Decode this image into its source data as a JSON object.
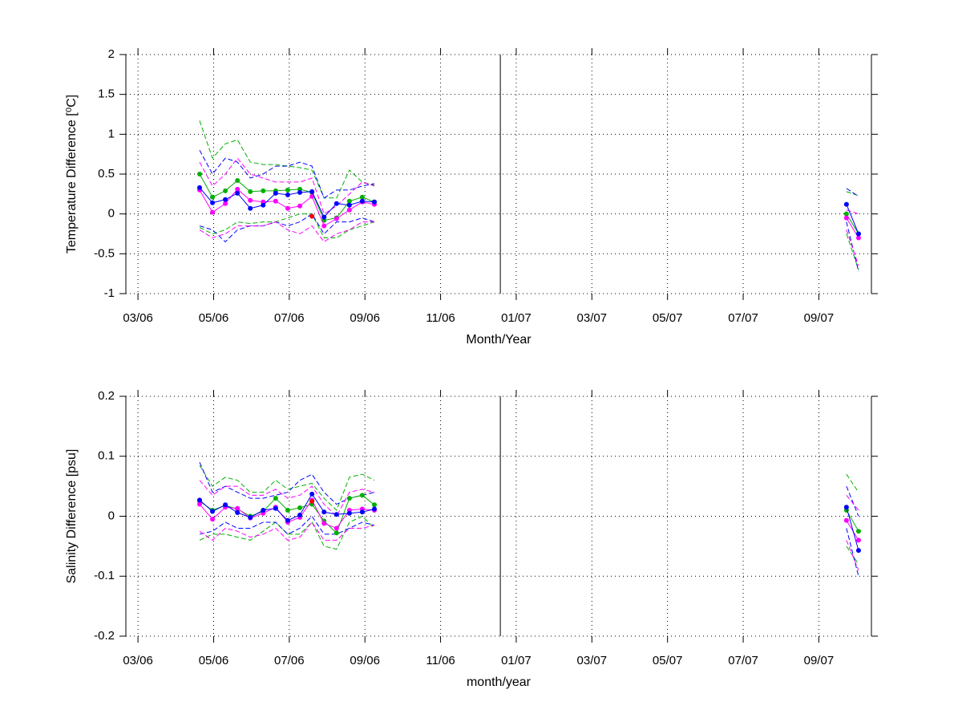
{
  "chart_data": [
    {
      "type": "line",
      "xlabel": "Month/Year",
      "ylabel": "Temperature Difference [⁰C]",
      "x": [
        4.63,
        4.97,
        5.31,
        5.63,
        5.97,
        6.31,
        6.64,
        6.96,
        7.28,
        7.6,
        7.92,
        8.25,
        8.59,
        8.93,
        9.25,
        null,
        21.73,
        22.05
      ],
      "xlim": [
        2.68,
        22.39
      ],
      "xticks": [
        {
          "value": 3,
          "label": "03/06"
        },
        {
          "value": 5,
          "label": "05/06"
        },
        {
          "value": 7,
          "label": "07/06"
        },
        {
          "value": 9,
          "label": "09/06"
        },
        {
          "value": 11,
          "label": "11/06"
        },
        {
          "value": 13,
          "label": "01/07"
        },
        {
          "value": 15,
          "label": "03/07"
        },
        {
          "value": 17,
          "label": "05/07"
        },
        {
          "value": 19,
          "label": "07/07"
        },
        {
          "value": 21,
          "label": "09/07"
        }
      ],
      "ylim": [
        -1,
        2
      ],
      "yticks": [
        -1,
        -0.5,
        0,
        0.5,
        1,
        1.5,
        2
      ],
      "grid": true,
      "vline": 12.58,
      "series": [
        {
          "color": "#00b000",
          "style": "dashed",
          "values": [
            1.17,
            0.7,
            0.88,
            0.93,
            0.65,
            0.62,
            0.62,
            0.6,
            0.58,
            0.55,
            0.2,
            0.2,
            0.55,
            0.4,
            0.36,
            null,
            0.28,
            0.23
          ]
        },
        {
          "color": "#00b000",
          "style": "dashed",
          "values": [
            -0.17,
            -0.25,
            -0.2,
            -0.1,
            -0.12,
            -0.1,
            -0.1,
            -0.05,
            0.0,
            0.0,
            -0.3,
            -0.3,
            -0.2,
            -0.15,
            -0.1,
            null,
            -0.25,
            -0.7
          ]
        },
        {
          "color": "#0000ff",
          "style": "dashed",
          "values": [
            0.8,
            0.5,
            0.7,
            0.65,
            0.45,
            0.5,
            0.6,
            0.6,
            0.65,
            0.6,
            0.2,
            0.3,
            0.3,
            0.35,
            0.38,
            null,
            0.32,
            0.22
          ]
        },
        {
          "color": "#0000ff",
          "style": "dashed",
          "values": [
            -0.15,
            -0.2,
            -0.35,
            -0.2,
            -0.15,
            -0.15,
            -0.1,
            -0.15,
            -0.1,
            0.0,
            -0.25,
            -0.1,
            -0.1,
            -0.05,
            -0.1,
            null,
            -0.1,
            -0.72
          ]
        },
        {
          "color": "#ff00ff",
          "style": "dashed",
          "values": [
            0.65,
            0.35,
            0.5,
            0.7,
            0.5,
            0.45,
            0.4,
            0.4,
            0.4,
            0.45,
            0.0,
            0.1,
            0.25,
            0.4,
            0.35,
            null,
            0.05,
            0.0
          ]
        },
        {
          "color": "#ff00ff",
          "style": "dashed",
          "values": [
            -0.2,
            -0.3,
            -0.25,
            -0.15,
            -0.15,
            -0.15,
            -0.1,
            -0.2,
            -0.25,
            -0.15,
            -0.35,
            -0.25,
            -0.2,
            -0.1,
            -0.1,
            null,
            -0.2,
            -0.65
          ]
        },
        {
          "color": "#00b000",
          "style": "solid",
          "values": [
            0.5,
            0.21,
            0.29,
            0.42,
            0.28,
            0.29,
            0.29,
            0.3,
            0.31,
            0.27,
            -0.08,
            -0.05,
            0.16,
            0.21,
            0.15,
            null,
            0.0,
            -0.25
          ]
        },
        {
          "color": "#ff00ff",
          "style": "solid",
          "values": [
            0.3,
            0.02,
            0.13,
            0.31,
            0.17,
            0.15,
            0.16,
            0.07,
            0.1,
            0.22,
            -0.15,
            -0.06,
            0.05,
            0.15,
            0.12,
            null,
            -0.05,
            -0.3
          ]
        },
        {
          "color": "#0000ff",
          "style": "solid",
          "values": [
            0.33,
            0.14,
            0.18,
            0.26,
            0.07,
            0.11,
            0.26,
            0.24,
            0.27,
            0.28,
            -0.04,
            0.13,
            0.11,
            0.16,
            0.15,
            null,
            0.12,
            -0.25
          ]
        },
        {
          "color": "#ff0000",
          "style": "markers",
          "values": [
            null,
            null,
            null,
            null,
            null,
            null,
            null,
            null,
            null,
            -0.03,
            null,
            null,
            null,
            null,
            null,
            null,
            null,
            null
          ]
        }
      ]
    },
    {
      "type": "line",
      "xlabel": "month/year",
      "ylabel": "Salinity Difference [psu]",
      "x": [
        4.63,
        4.97,
        5.31,
        5.63,
        5.97,
        6.31,
        6.64,
        6.96,
        7.28,
        7.6,
        7.92,
        8.25,
        8.59,
        8.93,
        9.25,
        null,
        21.73,
        22.05
      ],
      "xlim": [
        2.68,
        22.39
      ],
      "xticks": [
        {
          "value": 3,
          "label": "03/06"
        },
        {
          "value": 5,
          "label": "05/06"
        },
        {
          "value": 7,
          "label": "07/06"
        },
        {
          "value": 9,
          "label": "09/06"
        },
        {
          "value": 11,
          "label": "11/06"
        },
        {
          "value": 13,
          "label": "01/07"
        },
        {
          "value": 15,
          "label": "03/07"
        },
        {
          "value": 17,
          "label": "05/07"
        },
        {
          "value": 19,
          "label": "07/07"
        },
        {
          "value": 21,
          "label": "09/07"
        }
      ],
      "ylim": [
        -0.2,
        0.2
      ],
      "yticks": [
        -0.2,
        -0.1,
        0,
        0.1,
        0.2
      ],
      "grid": true,
      "vline": 12.58,
      "series": [
        {
          "color": "#00b000",
          "style": "dashed",
          "values": [
            0.085,
            0.05,
            0.065,
            0.06,
            0.04,
            0.04,
            0.06,
            0.045,
            0.05,
            0.055,
            0.03,
            0.01,
            0.065,
            0.07,
            0.06,
            null,
            0.07,
            0.04
          ]
        },
        {
          "color": "#00b000",
          "style": "dashed",
          "values": [
            -0.04,
            -0.03,
            -0.03,
            -0.035,
            -0.04,
            -0.025,
            -0.01,
            -0.03,
            -0.03,
            -0.01,
            -0.05,
            -0.055,
            -0.01,
            0.0,
            -0.02,
            null,
            -0.05,
            -0.08
          ]
        },
        {
          "color": "#0000ff",
          "style": "dashed",
          "values": [
            0.09,
            0.04,
            0.05,
            0.04,
            0.03,
            0.03,
            0.035,
            0.04,
            0.06,
            0.07,
            0.04,
            0.02,
            0.03,
            0.035,
            0.04,
            null,
            0.05,
            0.0
          ]
        },
        {
          "color": "#0000ff",
          "style": "dashed",
          "values": [
            -0.03,
            -0.025,
            -0.01,
            -0.02,
            -0.02,
            -0.01,
            -0.01,
            -0.03,
            -0.02,
            0.0,
            -0.03,
            -0.03,
            -0.02,
            -0.01,
            -0.015,
            null,
            -0.02,
            -0.1
          ]
        },
        {
          "color": "#ff00ff",
          "style": "dashed",
          "values": [
            0.06,
            0.035,
            0.05,
            0.05,
            0.035,
            0.035,
            0.045,
            0.03,
            0.035,
            0.05,
            0.02,
            0.0,
            0.04,
            0.045,
            0.04,
            null,
            0.035,
            0.01
          ]
        },
        {
          "color": "#ff00ff",
          "style": "dashed",
          "values": [
            -0.025,
            -0.04,
            -0.02,
            -0.025,
            -0.035,
            -0.03,
            -0.02,
            -0.04,
            -0.035,
            -0.01,
            -0.04,
            -0.04,
            -0.02,
            -0.02,
            -0.015,
            null,
            -0.04,
            -0.09
          ]
        },
        {
          "color": "#00b000",
          "style": "solid",
          "values": [
            0.025,
            0.01,
            0.018,
            0.012,
            0.0,
            0.008,
            0.03,
            0.01,
            0.014,
            0.02,
            -0.008,
            -0.028,
            0.03,
            0.035,
            0.019,
            null,
            0.01,
            -0.025
          ]
        },
        {
          "color": "#ff00ff",
          "style": "solid",
          "values": [
            0.02,
            -0.005,
            0.015,
            0.013,
            -0.003,
            0.005,
            0.015,
            -0.01,
            -0.002,
            0.027,
            -0.012,
            -0.02,
            0.01,
            0.012,
            0.01,
            null,
            -0.007,
            -0.04
          ]
        },
        {
          "color": "#0000ff",
          "style": "solid",
          "values": [
            0.027,
            0.008,
            0.019,
            0.006,
            -0.002,
            0.01,
            0.013,
            -0.007,
            0.002,
            0.037,
            0.007,
            0.003,
            0.005,
            0.007,
            0.012,
            null,
            0.015,
            -0.057
          ]
        },
        {
          "color": "#ff0000",
          "style": "markers",
          "values": [
            null,
            null,
            null,
            null,
            null,
            null,
            null,
            null,
            null,
            0.025,
            null,
            null,
            null,
            null,
            null,
            null,
            null,
            null
          ]
        }
      ]
    }
  ]
}
